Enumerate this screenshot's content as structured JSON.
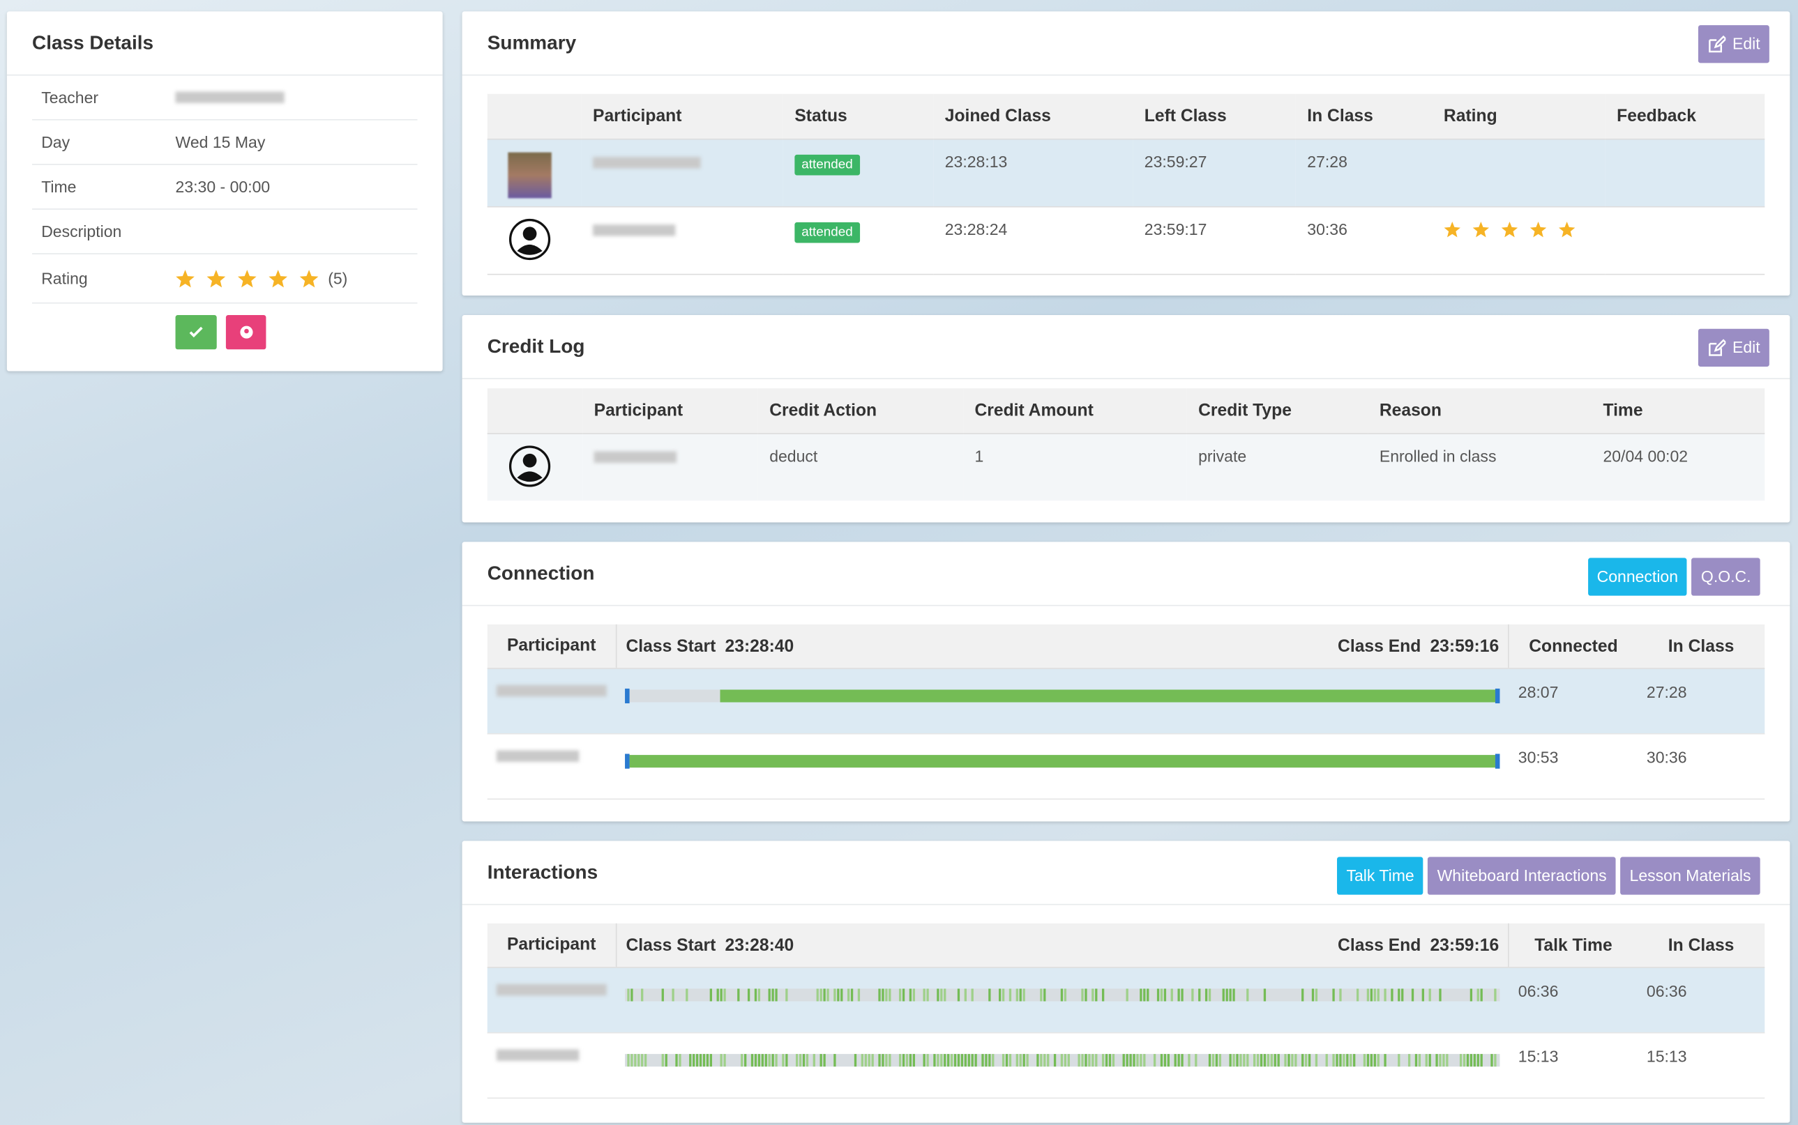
{
  "class_details": {
    "title": "Class Details",
    "rows": [
      {
        "label": "Teacher"
      },
      {
        "label": "Day",
        "value": "Wed 15 May"
      },
      {
        "label": "Time",
        "value": "23:30 - 00:00"
      },
      {
        "label": "Description"
      },
      {
        "label": "Rating",
        "value": "(5)"
      }
    ]
  },
  "summary": {
    "title": "Summary",
    "button": "Edit",
    "columns": [
      "Participant",
      "Status",
      "Joined Class",
      "Left Class",
      "In Class",
      "Rating",
      "Feedback"
    ],
    "rows": [
      {
        "status": "attended",
        "joined": "23:28:13",
        "left": "23:59:27",
        "in_class": "27:28"
      },
      {
        "status": "attended",
        "joined": "23:28:24",
        "left": "23:59:17",
        "in_class": "30:36"
      }
    ]
  },
  "credit_log": {
    "title": "Credit Log",
    "button": "Edit",
    "columns": [
      "Participant",
      "Credit Action",
      "Credit Amount",
      "Credit Type",
      "Reason",
      "Time"
    ],
    "rows": [
      {
        "action": "deduct",
        "amount": "1",
        "type": "private",
        "reason": "Enrolled in class",
        "time": "20/04 00:02"
      }
    ]
  },
  "connection": {
    "title": "Connection",
    "buttons": [
      "Connection",
      "Q.O.C."
    ],
    "participant": "Participant",
    "class_start_label": "Class Start",
    "class_start": "23:28:40",
    "class_end_label": "Class End",
    "class_end": "23:59:16",
    "metric": "Connected",
    "in_class": "In Class",
    "rows": [
      {
        "metric": "28:07",
        "in_class": "27:28"
      },
      {
        "metric": "30:53",
        "in_class": "30:36"
      }
    ]
  },
  "interactions": {
    "title": "Interactions",
    "buttons": [
      "Talk Time",
      "Whiteboard Interactions",
      "Lesson Materials"
    ],
    "participant": "Participant",
    "class_start_label": "Class Start",
    "class_start": "23:28:40",
    "class_end_label": "Class End",
    "class_end": "23:59:16",
    "metric": "Talk Time",
    "in_class": "In Class",
    "rows": [
      {
        "metric": "06:36",
        "in_class": "06:36"
      },
      {
        "metric": "15:13",
        "in_class": "15:13"
      }
    ]
  }
}
